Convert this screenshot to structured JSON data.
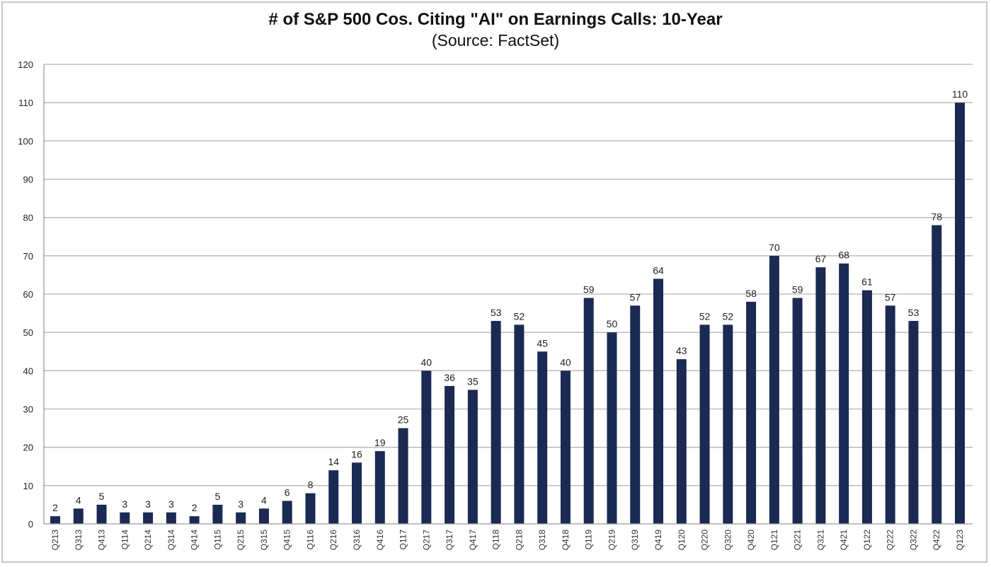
{
  "chart_data": {
    "type": "bar",
    "title": "# of S&P 500 Cos. Citing \"AI\" on Earnings Calls: 10-Year",
    "subtitle": "(Source: FactSet)",
    "xlabel": "",
    "ylabel": "",
    "ylim": [
      0,
      120
    ],
    "yticks": [
      0,
      10,
      20,
      30,
      40,
      50,
      60,
      70,
      80,
      90,
      100,
      110,
      120
    ],
    "grid": true,
    "legend": "none",
    "bar_color": "#1a2a52",
    "categories": [
      "Q213",
      "Q313",
      "Q413",
      "Q114",
      "Q214",
      "Q314",
      "Q414",
      "Q115",
      "Q215",
      "Q315",
      "Q415",
      "Q116",
      "Q216",
      "Q316",
      "Q416",
      "Q117",
      "Q217",
      "Q317",
      "Q417",
      "Q118",
      "Q218",
      "Q318",
      "Q418",
      "Q119",
      "Q219",
      "Q319",
      "Q419",
      "Q120",
      "Q220",
      "Q320",
      "Q420",
      "Q121",
      "Q221",
      "Q321",
      "Q421",
      "Q122",
      "Q222",
      "Q322",
      "Q422",
      "Q123"
    ],
    "values": [
      2,
      4,
      5,
      3,
      3,
      3,
      2,
      5,
      3,
      4,
      6,
      8,
      14,
      16,
      19,
      25,
      40,
      36,
      35,
      53,
      52,
      45,
      40,
      59,
      50,
      57,
      64,
      43,
      52,
      52,
      58,
      70,
      59,
      67,
      68,
      61,
      57,
      53,
      78,
      110
    ]
  }
}
